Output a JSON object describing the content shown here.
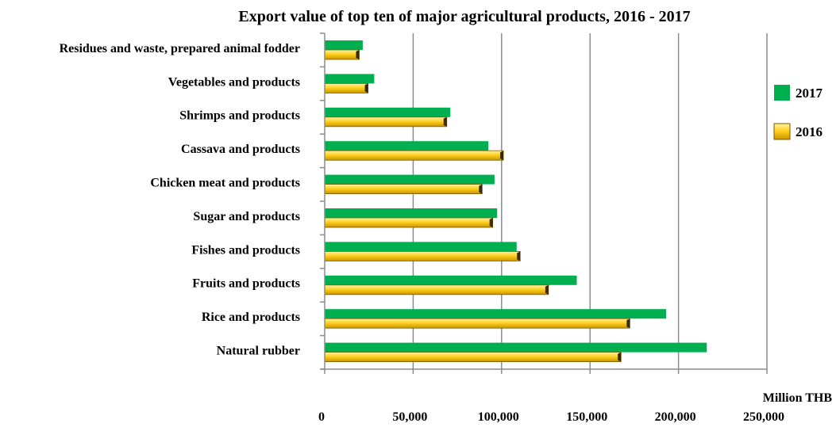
{
  "chart_data": {
    "type": "bar",
    "orientation": "horizontal",
    "title": "Export value of top ten of major agricultural products, 2016 - 2017",
    "xlabel": "Million THB",
    "ylabel": "",
    "xlim": [
      0,
      250000
    ],
    "xticks": [
      0,
      50000,
      100000,
      150000,
      200000,
      250000
    ],
    "xtick_labels": [
      "0",
      "50,000",
      "100,000",
      "150,000",
      "200,000",
      "250,000"
    ],
    "grid": "vertical",
    "legend_position": "right",
    "categories": [
      "Residues and waste, prepared animal fodder",
      "Vegetables and products",
      "Shrimps and products",
      "Cassava and products",
      "Chicken meat and products",
      "Sugar and products",
      "Fishes and products",
      "Fruits and products",
      "Rice and products",
      "Natural rubber"
    ],
    "series": [
      {
        "name": "2017",
        "color": "#00b050",
        "values": [
          21500,
          28000,
          71000,
          92500,
          96000,
          97500,
          108500,
          142500,
          193000,
          216000
        ]
      },
      {
        "name": "2016",
        "color": "#ffc000",
        "values": [
          19500,
          24500,
          69000,
          101000,
          89000,
          95000,
          110500,
          126500,
          172500,
          167500
        ]
      }
    ]
  }
}
